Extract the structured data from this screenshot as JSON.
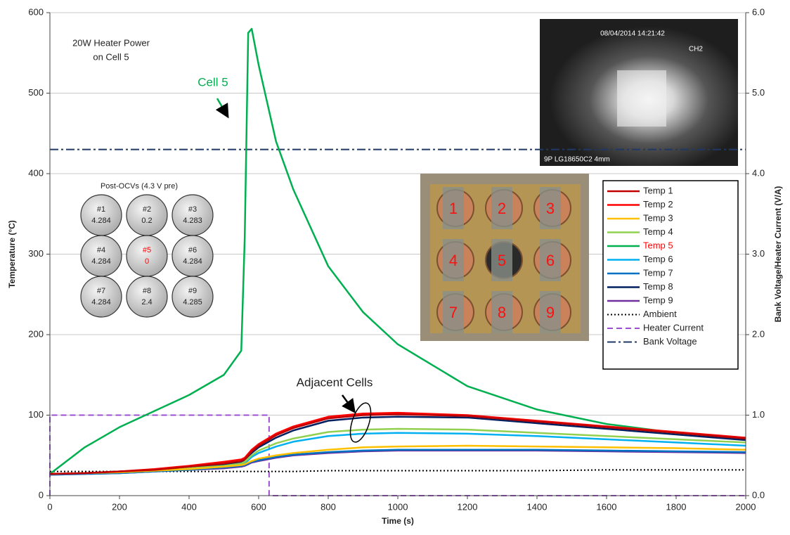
{
  "chart_data": {
    "type": "line",
    "xlabel": "Time (s)",
    "ylabel": "Temperature (°C)",
    "y2label": "Bank Voltage/Heater Current (V/A)",
    "xlim": [
      0,
      2000
    ],
    "xticks": [
      0,
      200,
      400,
      600,
      800,
      1000,
      1200,
      1400,
      1600,
      1800,
      2000
    ],
    "ylim": [
      0,
      600
    ],
    "yticks": [
      0,
      100,
      200,
      300,
      400,
      500,
      600
    ],
    "y2lim": [
      0,
      6
    ],
    "y2ticks": [
      {
        "value": 0,
        "label": "0.0"
      },
      {
        "value": 1,
        "label": "1.0"
      },
      {
        "value": 2,
        "label": "2.0"
      },
      {
        "value": 3,
        "label": "3.0"
      },
      {
        "value": 4,
        "label": "4.0"
      },
      {
        "value": 5,
        "label": "5.0"
      },
      {
        "value": 6,
        "label": "6.0"
      }
    ],
    "grid": true,
    "legend": "right",
    "x": [
      0,
      100,
      200,
      300,
      400,
      500,
      550,
      560,
      570,
      580,
      600,
      650,
      700,
      800,
      900,
      1000,
      1200,
      1400,
      1600,
      1800,
      2000
    ],
    "series": [
      {
        "name": "Temp 1",
        "color": "#c00000",
        "dash": "solid",
        "values": [
          27,
          28,
          30,
          32,
          36,
          40,
          43,
          45,
          50,
          55,
          62,
          75,
          84,
          96,
          100,
          101,
          99,
          92,
          85,
          78,
          71
        ]
      },
      {
        "name": "Temp 2",
        "color": "#ff0000",
        "dash": "solid",
        "values": [
          27,
          28,
          30,
          33,
          37,
          42,
          45,
          47,
          52,
          57,
          64,
          77,
          86,
          98,
          102,
          103,
          100,
          93,
          86,
          79,
          72
        ]
      },
      {
        "name": "Temp 3",
        "color": "#ffc000",
        "dash": "solid",
        "values": [
          27,
          28,
          29,
          31,
          33,
          36,
          38,
          39,
          41,
          43,
          46,
          50,
          53,
          57,
          60,
          61,
          62,
          61,
          60,
          59,
          57
        ]
      },
      {
        "name": "Temp 4",
        "color": "#92d050",
        "dash": "solid",
        "values": [
          27,
          28,
          29,
          31,
          34,
          37,
          40,
          42,
          46,
          50,
          56,
          65,
          71,
          79,
          82,
          83,
          82,
          78,
          74,
          70,
          66
        ]
      },
      {
        "name": "Temp 5",
        "color": "#00b050",
        "label_color": "#ff0000",
        "dash": "solid",
        "values": [
          27,
          60,
          85,
          105,
          125,
          150,
          180,
          320,
          575,
          580,
          535,
          440,
          380,
          285,
          228,
          188,
          136,
          107,
          89,
          78,
          72
        ]
      },
      {
        "name": "Temp 6",
        "color": "#00b0f0",
        "dash": "solid",
        "values": [
          27,
          28,
          29,
          31,
          33,
          36,
          38,
          40,
          44,
          48,
          53,
          61,
          67,
          74,
          77,
          78,
          77,
          74,
          70,
          66,
          62
        ]
      },
      {
        "name": "Temp 7",
        "color": "#0070c0",
        "dash": "solid",
        "values": [
          26,
          27,
          28,
          30,
          32,
          35,
          37,
          38,
          40,
          42,
          44,
          48,
          51,
          54,
          56,
          57,
          57,
          57,
          56,
          55,
          54
        ]
      },
      {
        "name": "Temp 8",
        "color": "#002060",
        "dash": "solid",
        "values": [
          27,
          28,
          30,
          32,
          35,
          39,
          42,
          44,
          49,
          53,
          60,
          72,
          81,
          93,
          97,
          98,
          97,
          90,
          83,
          76,
          69
        ]
      },
      {
        "name": "Temp 9",
        "color": "#7030a0",
        "dash": "solid",
        "values": [
          26,
          27,
          28,
          30,
          32,
          34,
          36,
          37,
          39,
          41,
          43,
          47,
          50,
          53,
          55,
          56,
          56,
          56,
          55,
          54,
          53
        ]
      },
      {
        "name": "Ambient",
        "color": "#000000",
        "dash": "dotted",
        "values": [
          30,
          30,
          30,
          30,
          30,
          30,
          30,
          30,
          30,
          30,
          30,
          30,
          30,
          31,
          31,
          31,
          31,
          31,
          32,
          32,
          32
        ]
      },
      {
        "name": "Heater Current",
        "color": "#9b4fd0",
        "dash": "dashed",
        "axis": "y2",
        "x": [
          0,
          0,
          630,
          630,
          2000
        ],
        "values": [
          0,
          1,
          1,
          0,
          0
        ]
      },
      {
        "name": "Bank Voltage",
        "color": "#1f3864",
        "dash": "dashdot",
        "axis": "y2",
        "values": [
          4.3,
          4.3,
          4.3,
          4.3,
          4.3,
          4.3,
          4.3,
          4.3,
          4.3,
          4.3,
          4.3,
          4.3,
          4.3,
          4.3,
          4.3,
          4.3,
          4.3,
          4.3,
          4.3,
          4.3,
          4.3
        ]
      }
    ],
    "annotations": {
      "heater_note": [
        "20W Heater Power",
        "on Cell 5"
      ],
      "cell5_label": "Cell 5",
      "adjacent_label": "Adjacent Cells"
    },
    "ocv_inset": {
      "title": "Post-OCVs (4.3 V pre)",
      "cells": [
        {
          "label": "#1",
          "value": 4.284
        },
        {
          "label": "#2",
          "value": 0.2
        },
        {
          "label": "#3",
          "value": 4.283
        },
        {
          "label": "#4",
          "value": 4.284
        },
        {
          "label": "#5",
          "value": 0,
          "color": "#ff0000"
        },
        {
          "label": "#6",
          "value": 4.284
        },
        {
          "label": "#7",
          "value": 4.284
        },
        {
          "label": "#8",
          "value": 2.4
        },
        {
          "label": "#9",
          "value": 4.285
        }
      ]
    },
    "camera_photo": {
      "timestamp": "08/04/2014 14:21:42",
      "channel": "CH2",
      "caption": "9P LG18650C2 4mm"
    },
    "cell_photo_labels": [
      1,
      2,
      3,
      4,
      5,
      6,
      7,
      8,
      9
    ]
  }
}
